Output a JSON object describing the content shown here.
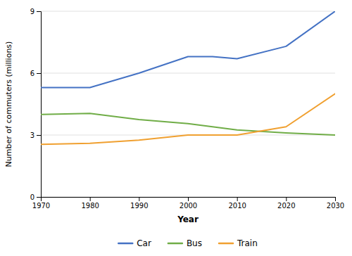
{
  "chart_data": {
    "type": "line",
    "xlabel": "Year",
    "ylabel": "Number of commuters (millions)",
    "x": [
      1970,
      1980,
      1990,
      2000,
      2005,
      2010,
      2020,
      2030
    ],
    "series": [
      {
        "name": "Car",
        "color": "#4472c4",
        "values": [
          5.3,
          5.3,
          6.0,
          6.8,
          6.8,
          6.7,
          7.3,
          9.0
        ]
      },
      {
        "name": "Bus",
        "color": "#70ad47",
        "values": [
          4.0,
          4.05,
          3.75,
          3.55,
          3.4,
          3.25,
          3.1,
          3.0
        ]
      },
      {
        "name": "Train",
        "color": "#f0a030",
        "values": [
          2.55,
          2.6,
          2.75,
          3.0,
          3.0,
          3.0,
          3.4,
          5.0
        ]
      }
    ],
    "xlim": [
      1970,
      2030
    ],
    "xticks": [
      1970,
      1980,
      1990,
      2000,
      2010,
      2020,
      2030
    ],
    "ylim": [
      0,
      9
    ],
    "yticks": [
      0,
      3,
      6,
      9
    ],
    "grid": true,
    "legend": "bottom"
  }
}
